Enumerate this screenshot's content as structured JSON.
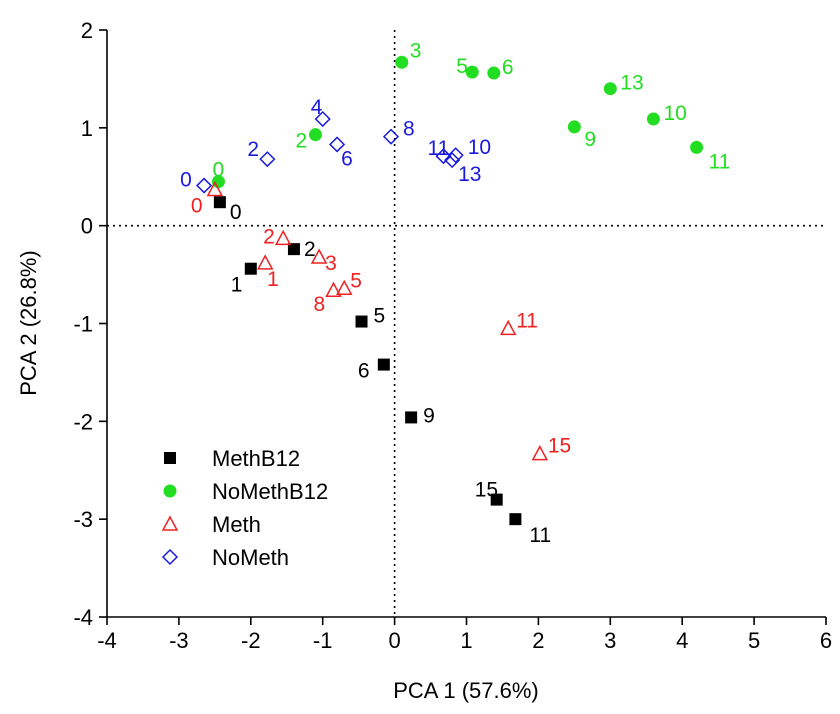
{
  "chart_data": {
    "type": "scatter",
    "xlabel": "PCA 1 (57.6%)",
    "ylabel": "PCA 2 (26.8%)",
    "xlim": [
      -4,
      6
    ],
    "ylim": [
      -4,
      2
    ],
    "xticks": [
      "-4",
      "-3",
      "-2",
      "-1",
      "0",
      "1",
      "2",
      "3",
      "4",
      "5",
      "6"
    ],
    "yticks": [
      "-4",
      "-3",
      "-2",
      "-1",
      "0",
      "1",
      "2"
    ],
    "legend_position": "bottom-left",
    "reference_lines": "dotted lines at x = 0 and y = 0",
    "series": [
      {
        "name": "MethB12",
        "marker": "filled-square",
        "color": "#000000",
        "points": [
          {
            "x": -2.43,
            "y": 0.24,
            "label": "0"
          },
          {
            "x": -2.0,
            "y": -0.44,
            "label": "1"
          },
          {
            "x": -1.4,
            "y": -0.24,
            "label": "2"
          },
          {
            "x": -0.46,
            "y": -0.98,
            "label": "5"
          },
          {
            "x": -0.15,
            "y": -1.42,
            "label": "6"
          },
          {
            "x": 0.23,
            "y": -1.96,
            "label": "9"
          },
          {
            "x": 1.42,
            "y": -2.8,
            "label": "15"
          },
          {
            "x": 1.68,
            "y": -3.0,
            "label": "11"
          }
        ]
      },
      {
        "name": "NoMethB12",
        "marker": "filled-circle",
        "color": "#22dd22",
        "points": [
          {
            "x": -2.45,
            "y": 0.45,
            "label": "0"
          },
          {
            "x": -1.1,
            "y": 0.93,
            "label": "2"
          },
          {
            "x": 0.1,
            "y": 1.67,
            "label": "3"
          },
          {
            "x": 1.08,
            "y": 1.57,
            "label": "5"
          },
          {
            "x": 1.38,
            "y": 1.56,
            "label": "6"
          },
          {
            "x": 2.5,
            "y": 1.01,
            "label": "9"
          },
          {
            "x": 3.0,
            "y": 1.4,
            "label": "13"
          },
          {
            "x": 3.6,
            "y": 1.09,
            "label": "10"
          },
          {
            "x": 4.2,
            "y": 0.8,
            "label": "11"
          }
        ]
      },
      {
        "name": "Meth",
        "marker": "open-triangle",
        "color": "#ee2222",
        "points": [
          {
            "x": -2.5,
            "y": 0.37,
            "label": "0"
          },
          {
            "x": -1.8,
            "y": -0.38,
            "label": "1"
          },
          {
            "x": -1.55,
            "y": -0.13,
            "label": "2"
          },
          {
            "x": -1.05,
            "y": -0.32,
            "label": "3"
          },
          {
            "x": -0.7,
            "y": -0.64,
            "label": "5"
          },
          {
            "x": -0.85,
            "y": -0.66,
            "label": "8"
          },
          {
            "x": 1.58,
            "y": -1.05,
            "label": "11"
          },
          {
            "x": 2.02,
            "y": -2.33,
            "label": "15"
          }
        ]
      },
      {
        "name": "NoMeth",
        "marker": "open-diamond",
        "color": "#1a1add",
        "points": [
          {
            "x": -2.65,
            "y": 0.41,
            "label": "0"
          },
          {
            "x": -1.77,
            "y": 0.68,
            "label": "2"
          },
          {
            "x": -1.0,
            "y": 1.09,
            "label": "4"
          },
          {
            "x": -0.8,
            "y": 0.83,
            "label": "6"
          },
          {
            "x": -0.05,
            "y": 0.91,
            "label": "8"
          },
          {
            "x": 0.68,
            "y": 0.71,
            "label": "11"
          },
          {
            "x": 0.85,
            "y": 0.72,
            "label": "10"
          },
          {
            "x": 0.8,
            "y": 0.67,
            "label": "13"
          }
        ]
      }
    ]
  }
}
